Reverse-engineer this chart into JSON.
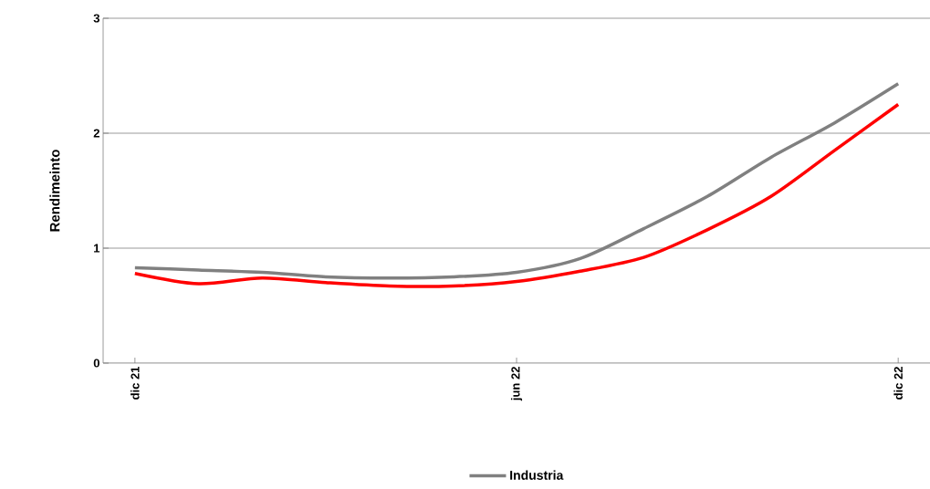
{
  "chart_data": {
    "type": "line",
    "ylabel": "Rendimeinto",
    "categories": [
      "dic 21",
      null,
      null,
      null,
      null,
      null,
      "jun 22",
      null,
      null,
      null,
      null,
      null,
      "dic 22"
    ],
    "series": [
      {
        "color": "#ff0000",
        "values": [
          0.78,
          0.69,
          0.74,
          0.7,
          0.67,
          0.67,
          0.71,
          0.8,
          0.92,
          1.16,
          1.45,
          1.85,
          2.25
        ]
      },
      {
        "name": "Industria",
        "color": "#808080",
        "values": [
          0.83,
          0.81,
          0.79,
          0.75,
          0.74,
          0.75,
          0.79,
          0.91,
          1.17,
          1.45,
          1.79,
          2.09,
          2.43
        ]
      }
    ],
    "ylim": [
      0,
      3
    ],
    "yticks": [
      0,
      1,
      2,
      3
    ],
    "grid": "y",
    "legend": "bottom",
    "marker": "none",
    "line_style": "solid"
  }
}
